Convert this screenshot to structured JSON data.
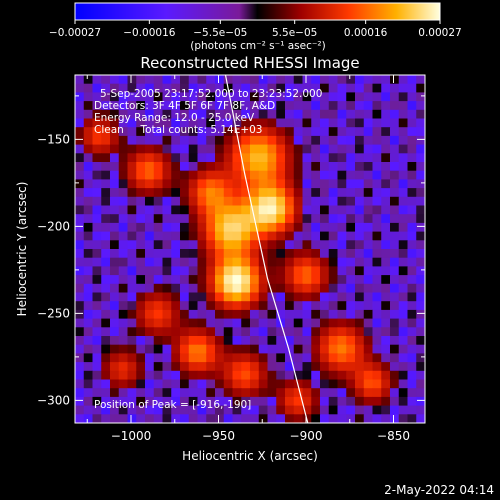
{
  "chart_data": {
    "type": "heatmap",
    "title": "Reconstructed RHESSI Image",
    "xlabel": "Heliocentric X (arcsec)",
    "ylabel": "Heliocentric Y (arcsec)",
    "xlim": [
      -1032,
      -832
    ],
    "ylim": [
      -313,
      -113
    ],
    "x_ticks": [
      -1000,
      -950,
      -900,
      -850
    ],
    "x_tick_labels": [
      "−1000",
      "−950",
      "−900",
      "−850"
    ],
    "y_ticks": [
      -300,
      -250,
      -200,
      -150
    ],
    "y_tick_labels": [
      "−300",
      "−250",
      "−200",
      "−150"
    ],
    "colorbar": {
      "min": -0.00027,
      "max": 0.00027,
      "ticks": [
        -0.00027,
        -0.00016,
        -5.5e-05,
        5.5e-05,
        0.00016,
        0.00027
      ],
      "tick_labels": [
        "−0.00027",
        "−0.00016",
        "−5.5e−05",
        "5.5e−05",
        "0.00016",
        "0.00027"
      ],
      "unit_label": "(photons cm⁻² s⁻¹ asec⁻²)"
    },
    "annotations": [
      "5-Sep-2005 23:17:52.000 to 23:23:52.000",
      "Detectors: 3F 4F 5F 6F 7F 8F, A&D",
      "Energy Range: 12.0 - 25.0 keV",
      "Clean     Total counts: 5.14E+03"
    ],
    "peak_label": "Position of Peak = [-916,-190]",
    "peak_position": [
      -916,
      -190
    ],
    "limb_curve": [
      [
        -946,
        -113
      ],
      [
        -935,
        -170
      ],
      [
        -922,
        -230
      ],
      [
        -910,
        -270
      ],
      [
        -899,
        -313
      ]
    ],
    "sources": [
      {
        "x": -940,
        "y": -232,
        "amp": 1.0,
        "sigma": 10
      },
      {
        "x": -943,
        "y": -202,
        "amp": 0.82,
        "sigma": 11
      },
      {
        "x": -920,
        "y": -190,
        "amp": 0.9,
        "sigma": 10
      },
      {
        "x": -927,
        "y": -160,
        "amp": 0.75,
        "sigma": 12
      },
      {
        "x": -955,
        "y": -180,
        "amp": 0.55,
        "sigma": 9
      },
      {
        "x": -990,
        "y": -168,
        "amp": 0.55,
        "sigma": 9
      },
      {
        "x": -1018,
        "y": -148,
        "amp": 0.45,
        "sigma": 8
      },
      {
        "x": -985,
        "y": -250,
        "amp": 0.45,
        "sigma": 9
      },
      {
        "x": -962,
        "y": -272,
        "amp": 0.6,
        "sigma": 9
      },
      {
        "x": -935,
        "y": -285,
        "amp": 0.5,
        "sigma": 9
      },
      {
        "x": -900,
        "y": -228,
        "amp": 0.55,
        "sigma": 9
      },
      {
        "x": -880,
        "y": -270,
        "amp": 0.6,
        "sigma": 10
      },
      {
        "x": -862,
        "y": -290,
        "amp": 0.5,
        "sigma": 8
      },
      {
        "x": -1005,
        "y": -282,
        "amp": 0.4,
        "sigma": 8
      },
      {
        "x": -905,
        "y": -300,
        "amp": 0.45,
        "sigma": 8
      }
    ]
  },
  "footer": {
    "timestamp": "2-May-2022 04:14"
  }
}
